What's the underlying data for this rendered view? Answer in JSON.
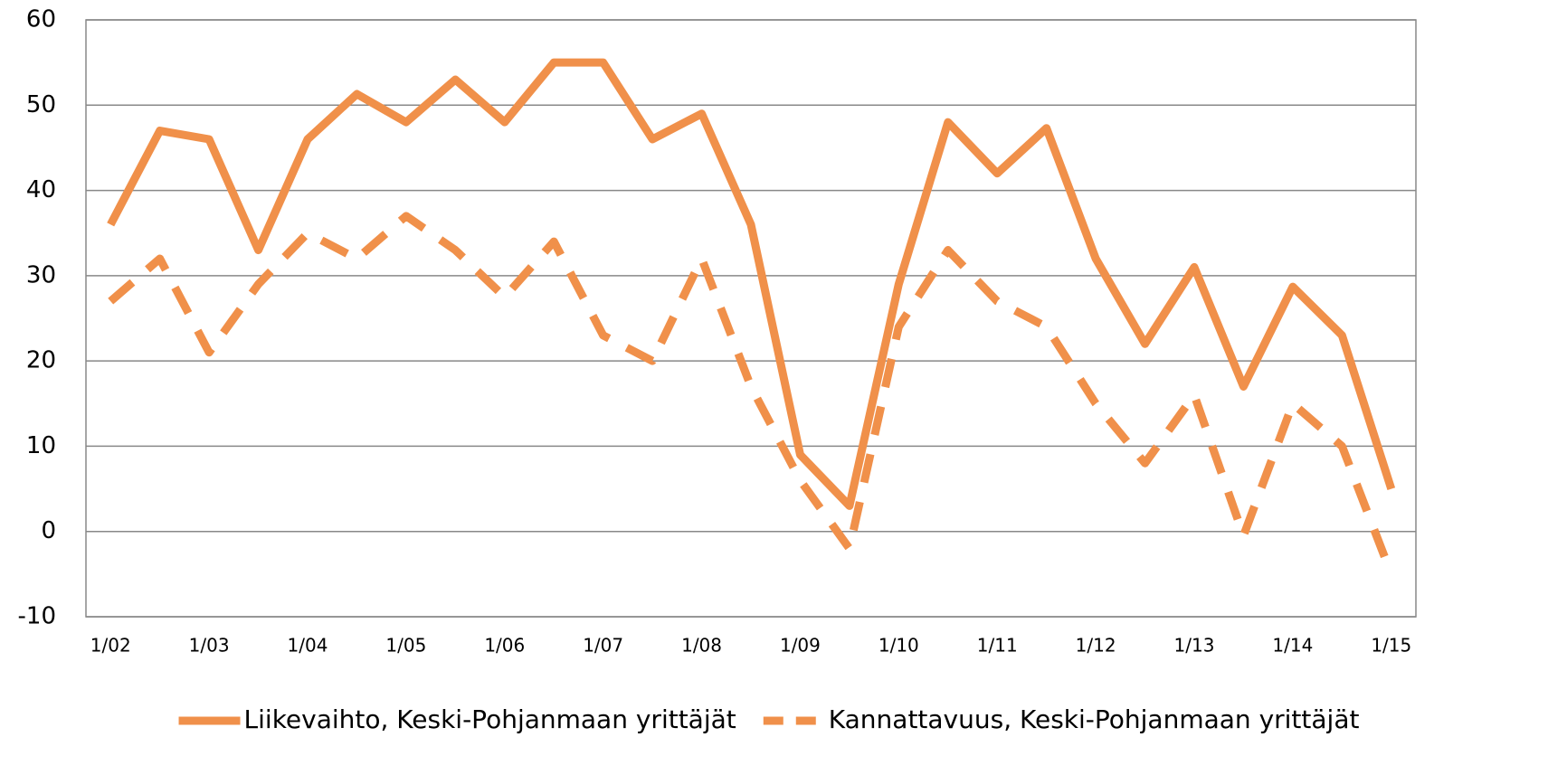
{
  "chart_data": {
    "type": "line",
    "categories": [
      "1/02",
      null,
      "1/03",
      null,
      "1/04",
      null,
      "1/05",
      null,
      "1/06",
      null,
      "1/07",
      null,
      "1/08",
      null,
      "1/09",
      null,
      "1/10",
      null,
      "1/11",
      null,
      "1/12",
      null,
      "1/13",
      null,
      "1/14",
      null,
      "1/15"
    ],
    "series": [
      {
        "name": "Liikevaihto, Keski-Pohjanmaan yrittäjät",
        "color": "#f0904a",
        "dash": "solid",
        "values": [
          36,
          47,
          46,
          33,
          46,
          51.3,
          48,
          53,
          48,
          55,
          55,
          46,
          49,
          36,
          9,
          3,
          29,
          48,
          42,
          47.3,
          32,
          22,
          31,
          17,
          28.7,
          23,
          5
        ]
      },
      {
        "name": "Kannattavuus, Keski-Pohjanmaan yrittäjät",
        "color": "#f0904a",
        "dash": "dashed",
        "values": [
          27,
          32,
          21,
          29,
          35,
          32,
          37,
          33,
          27.5,
          34,
          23,
          20,
          32,
          17,
          6,
          -2,
          24,
          33,
          27,
          24,
          15,
          8,
          16,
          -0.5,
          15,
          10,
          -5
        ]
      }
    ],
    "ylim": [
      -10,
      60
    ],
    "yticks": [
      -10,
      0,
      10,
      20,
      30,
      40,
      50,
      60
    ],
    "grid": true,
    "legend": "bottom"
  }
}
